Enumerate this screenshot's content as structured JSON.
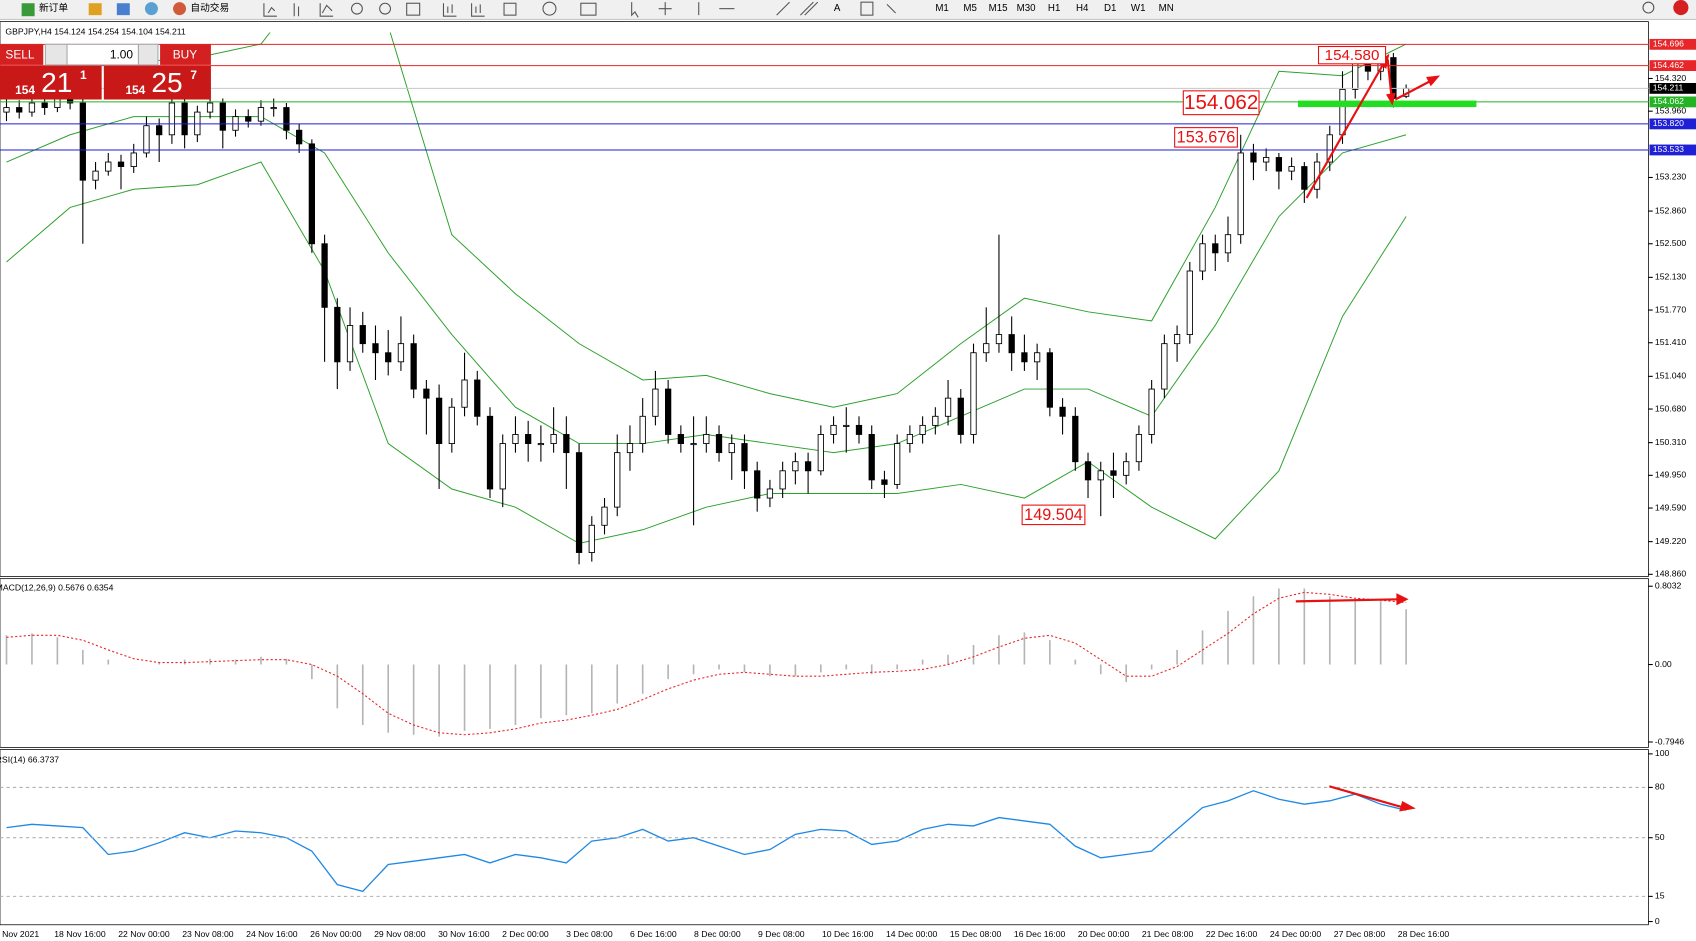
{
  "toolbar": {
    "new_order": "新订单",
    "auto_trading": "自动交易",
    "text_tool": "A",
    "timeframes": [
      "M1",
      "M5",
      "M15",
      "M30",
      "H1",
      "H4",
      "D1",
      "W1",
      "MN"
    ]
  },
  "trade_panel": {
    "sell": "SELL",
    "lots": "1.00",
    "buy": "BUY",
    "bid": {
      "big": "154",
      "main": "21",
      "sup": "1"
    },
    "ask": {
      "big": "154",
      "main": "25",
      "sup": "7"
    }
  },
  "chart_data": [
    {
      "type": "candlestick",
      "title": "GBPJPY,H4  154.124 154.254 154.104 154.211",
      "ylim": [
        148.836,
        154.827
      ],
      "yticks": [
        {
          "value": 154.32,
          "label": "154.320"
        },
        {
          "value": 153.96,
          "label": "153.960"
        },
        {
          "value": 153.23,
          "label": "153.230"
        },
        {
          "value": 152.86,
          "label": "152.860"
        },
        {
          "value": 152.5,
          "label": "152.500"
        },
        {
          "value": 152.13,
          "label": "152.130"
        },
        {
          "value": 151.77,
          "label": "151.770"
        },
        {
          "value": 151.41,
          "label": "151.410"
        },
        {
          "value": 151.04,
          "label": "151.040"
        },
        {
          "value": 150.68,
          "label": "150.680"
        },
        {
          "value": 150.31,
          "label": "150.310"
        },
        {
          "value": 149.95,
          "label": "149.950"
        },
        {
          "value": 149.59,
          "label": "149.590"
        },
        {
          "value": 149.22,
          "label": "149.220"
        },
        {
          "value": 148.86,
          "label": "148.860"
        }
      ],
      "levels": [
        {
          "value": 154.696,
          "color": "#e8262a"
        },
        {
          "value": 154.462,
          "color": "#e8262a"
        },
        {
          "value": 154.211,
          "color": "#c8c8c8",
          "label_color": "#000000"
        },
        {
          "value": 154.062,
          "color": "#22b422"
        },
        {
          "value": 153.82,
          "label": "153.820",
          "color": "#1f1fd6"
        },
        {
          "value": 153.533,
          "color": "#1f1fd6"
        }
      ],
      "annotations": [
        "154.580",
        "154.062",
        "153.676",
        "149.504"
      ],
      "bull_color": "#ffffff",
      "bear_color": "#000000",
      "ohlc": [
        [
          153.95,
          154.1,
          153.85,
          154.0
        ],
        [
          154.0,
          154.08,
          153.88,
          153.95
        ],
        [
          153.95,
          154.12,
          153.9,
          154.05
        ],
        [
          154.05,
          154.1,
          153.92,
          154.0
        ],
        [
          154.0,
          154.18,
          153.95,
          154.1
        ],
        [
          154.1,
          154.15,
          153.98,
          154.05
        ],
        [
          154.05,
          154.1,
          152.5,
          153.2
        ],
        [
          153.2,
          153.4,
          153.1,
          153.3
        ],
        [
          153.3,
          153.5,
          153.25,
          153.4
        ],
        [
          153.4,
          153.48,
          153.1,
          153.35
        ],
        [
          153.35,
          153.6,
          153.28,
          153.5
        ],
        [
          153.5,
          153.9,
          153.45,
          153.8
        ],
        [
          153.8,
          153.88,
          153.4,
          153.7
        ],
        [
          153.7,
          154.15,
          153.6,
          154.05
        ],
        [
          154.05,
          154.1,
          153.55,
          153.7
        ],
        [
          153.7,
          154.02,
          153.62,
          153.95
        ],
        [
          153.95,
          154.2,
          153.88,
          154.05
        ],
        [
          154.05,
          154.1,
          153.55,
          153.75
        ],
        [
          153.75,
          153.98,
          153.68,
          153.9
        ],
        [
          153.9,
          153.98,
          153.78,
          153.85
        ],
        [
          153.85,
          154.08,
          153.8,
          154.0
        ],
        [
          154.0,
          154.1,
          153.9,
          154.0
        ],
        [
          154.0,
          154.05,
          153.65,
          153.75
        ],
        [
          153.75,
          153.82,
          153.5,
          153.6
        ],
        [
          153.6,
          153.65,
          152.4,
          152.5
        ],
        [
          152.5,
          152.6,
          151.2,
          151.8
        ],
        [
          151.8,
          151.9,
          150.9,
          151.2
        ],
        [
          151.2,
          151.8,
          151.1,
          151.6
        ],
        [
          151.6,
          151.75,
          151.3,
          151.4
        ],
        [
          151.4,
          151.6,
          151.0,
          151.3
        ],
        [
          151.3,
          151.55,
          151.05,
          151.2
        ],
        [
          151.2,
          151.7,
          151.1,
          151.4
        ],
        [
          151.4,
          151.5,
          150.8,
          150.9
        ],
        [
          150.9,
          151.0,
          150.4,
          150.8
        ],
        [
          150.8,
          150.95,
          149.8,
          150.3
        ],
        [
          150.3,
          150.8,
          150.2,
          150.7
        ],
        [
          150.7,
          151.3,
          150.6,
          151.0
        ],
        [
          151.0,
          151.1,
          150.5,
          150.6
        ],
        [
          150.6,
          150.7,
          149.7,
          149.8
        ],
        [
          149.8,
          150.4,
          149.6,
          150.3
        ],
        [
          150.3,
          150.6,
          150.2,
          150.4
        ],
        [
          150.4,
          150.55,
          150.1,
          150.3
        ],
        [
          150.3,
          150.5,
          150.1,
          150.3
        ],
        [
          150.3,
          150.7,
          150.2,
          150.4
        ],
        [
          150.4,
          150.6,
          149.8,
          150.2
        ],
        [
          150.2,
          150.3,
          148.97,
          149.1
        ],
        [
          149.1,
          149.5,
          149.0,
          149.4
        ],
        [
          149.4,
          149.7,
          149.3,
          149.6
        ],
        [
          149.6,
          150.4,
          149.5,
          150.2
        ],
        [
          150.2,
          150.5,
          150.0,
          150.3
        ],
        [
          150.3,
          150.8,
          150.2,
          150.6
        ],
        [
          150.6,
          151.1,
          150.5,
          150.9
        ],
        [
          150.9,
          151.0,
          150.3,
          150.4
        ],
        [
          150.4,
          150.5,
          150.2,
          150.3
        ],
        [
          150.3,
          150.6,
          149.4,
          150.3
        ],
        [
          150.3,
          150.6,
          150.2,
          150.4
        ],
        [
          150.4,
          150.5,
          150.1,
          150.2
        ],
        [
          150.2,
          150.4,
          149.9,
          150.3
        ],
        [
          150.3,
          150.4,
          149.8,
          150.0
        ],
        [
          150.0,
          150.1,
          149.55,
          149.7
        ],
        [
          149.7,
          149.9,
          149.6,
          149.8
        ],
        [
          149.8,
          150.1,
          149.7,
          150.0
        ],
        [
          150.0,
          150.2,
          149.85,
          150.1
        ],
        [
          150.1,
          150.2,
          149.75,
          150.0
        ],
        [
          150.0,
          150.5,
          149.95,
          150.4
        ],
        [
          150.4,
          150.6,
          150.3,
          150.5
        ],
        [
          150.5,
          150.7,
          150.2,
          150.5
        ],
        [
          150.5,
          150.6,
          150.3,
          150.4
        ],
        [
          150.4,
          150.5,
          149.8,
          149.9
        ],
        [
          149.9,
          150.0,
          149.7,
          149.85
        ],
        [
          149.85,
          150.4,
          149.8,
          150.3
        ],
        [
          150.3,
          150.5,
          150.2,
          150.4
        ],
        [
          150.4,
          150.6,
          150.3,
          150.5
        ],
        [
          150.5,
          150.7,
          150.4,
          150.6
        ],
        [
          150.6,
          151.0,
          150.5,
          150.8
        ],
        [
          150.8,
          150.9,
          150.3,
          150.4
        ],
        [
          150.4,
          151.4,
          150.3,
          151.3
        ],
        [
          151.3,
          151.8,
          151.2,
          151.4
        ],
        [
          151.4,
          152.6,
          151.3,
          151.5
        ],
        [
          151.5,
          151.7,
          151.1,
          151.3
        ],
        [
          151.3,
          151.5,
          151.1,
          151.2
        ],
        [
          151.2,
          151.4,
          151.0,
          151.3
        ],
        [
          151.3,
          151.35,
          150.6,
          150.7
        ],
        [
          150.7,
          150.8,
          150.4,
          150.6
        ],
        [
          150.6,
          150.7,
          150.0,
          150.1
        ],
        [
          150.1,
          150.2,
          149.7,
          149.9
        ],
        [
          149.9,
          150.1,
          149.5,
          150.0
        ],
        [
          150.0,
          150.2,
          149.7,
          149.95
        ],
        [
          149.95,
          150.2,
          149.85,
          150.1
        ],
        [
          150.1,
          150.5,
          150.0,
          150.4
        ],
        [
          150.4,
          151.0,
          150.3,
          150.9
        ],
        [
          150.9,
          151.5,
          150.8,
          151.4
        ],
        [
          151.4,
          151.6,
          151.2,
          151.5
        ],
        [
          151.5,
          152.3,
          151.4,
          152.2
        ],
        [
          152.2,
          152.6,
          152.1,
          152.5
        ],
        [
          152.5,
          152.6,
          152.2,
          152.4
        ],
        [
          152.4,
          152.8,
          152.3,
          152.6
        ],
        [
          152.6,
          153.7,
          152.5,
          153.5
        ],
        [
          153.5,
          153.6,
          153.2,
          153.4
        ],
        [
          153.4,
          153.55,
          153.3,
          153.45
        ],
        [
          153.45,
          153.5,
          153.1,
          153.3
        ],
        [
          153.3,
          153.45,
          153.2,
          153.35
        ],
        [
          153.35,
          153.4,
          152.95,
          153.1
        ],
        [
          153.1,
          153.5,
          153.0,
          153.4
        ],
        [
          153.4,
          153.8,
          153.3,
          153.7
        ],
        [
          153.7,
          154.4,
          153.6,
          154.2
        ],
        [
          154.2,
          154.58,
          154.1,
          154.5
        ],
        [
          154.5,
          154.55,
          154.3,
          154.4
        ],
        [
          154.4,
          154.62,
          154.3,
          154.55
        ],
        [
          154.55,
          154.6,
          154.0,
          154.1
        ],
        [
          154.124,
          154.254,
          154.104,
          154.211
        ]
      ],
      "bands": [
        {
          "color": "#2ca02c",
          "values": [
            154.4,
            154.45,
            154.5,
            154.55,
            154.7,
            155.6,
            154.9,
            152.6,
            151.95,
            151.4,
            151.0,
            151.05,
            150.85,
            150.7,
            150.85,
            151.4,
            151.9,
            151.75,
            151.65,
            152.9,
            154.4,
            154.35,
            154.7
          ]
        },
        {
          "color": "#2ca02c",
          "values": [
            153.4,
            153.7,
            153.9,
            153.9,
            153.9,
            153.5,
            152.4,
            151.5,
            150.7,
            150.3,
            150.3,
            150.4,
            150.3,
            150.2,
            150.3,
            150.6,
            150.9,
            150.9,
            150.6,
            151.6,
            152.8,
            153.5,
            153.7
          ]
        },
        {
          "color": "#2ca02c",
          "values": [
            152.3,
            152.9,
            153.1,
            153.15,
            153.4,
            152.2,
            150.3,
            149.8,
            149.6,
            149.2,
            149.35,
            149.6,
            149.75,
            149.75,
            149.75,
            149.85,
            149.7,
            150.1,
            149.6,
            149.25,
            150.0,
            151.7,
            152.8
          ]
        }
      ]
    },
    {
      "type": "macd",
      "title": "MACD(12,26,9) 0.5676 0.6354",
      "ylim": [
        -0.85,
        0.881
      ],
      "yticks": [
        0.8032,
        {
          "value": 0,
          "label": "0.00"
        },
        -0.7946
      ],
      "histogram": {
        "color": "#b4b4b4",
        "values": [
          0.3,
          0.32,
          0.28,
          0.15,
          0.05,
          0.0,
          0.02,
          0.05,
          0.06,
          0.05,
          0.08,
          0.06,
          -0.15,
          -0.45,
          -0.62,
          -0.7,
          -0.72,
          -0.74,
          -0.68,
          -0.66,
          -0.62,
          -0.55,
          -0.52,
          -0.5,
          -0.4,
          -0.3,
          -0.15,
          -0.1,
          -0.05,
          -0.08,
          -0.12,
          -0.12,
          -0.08,
          -0.05,
          -0.1,
          -0.05,
          0.05,
          0.1,
          0.2,
          0.3,
          0.33,
          0.25,
          0.05,
          -0.1,
          -0.18,
          -0.05,
          0.15,
          0.35,
          0.55,
          0.7,
          0.78,
          0.78,
          0.7,
          0.65,
          0.65,
          0.5676
        ]
      },
      "signal": {
        "color": "#e8262a",
        "dashed": true,
        "values": [
          0.28,
          0.3,
          0.3,
          0.25,
          0.15,
          0.06,
          0.02,
          0.02,
          0.03,
          0.04,
          0.05,
          0.05,
          0.0,
          -0.12,
          -0.3,
          -0.5,
          -0.62,
          -0.7,
          -0.72,
          -0.7,
          -0.66,
          -0.6,
          -0.57,
          -0.52,
          -0.46,
          -0.36,
          -0.25,
          -0.16,
          -0.1,
          -0.08,
          -0.1,
          -0.12,
          -0.12,
          -0.1,
          -0.08,
          -0.07,
          -0.05,
          0.0,
          0.08,
          0.18,
          0.27,
          0.3,
          0.22,
          0.05,
          -0.12,
          -0.12,
          -0.02,
          0.15,
          0.32,
          0.52,
          0.68,
          0.74,
          0.72,
          0.68,
          0.66,
          0.6354
        ]
      }
    },
    {
      "type": "line",
      "title": "RSI(14) 66.3737",
      "ylim": [
        0,
        100
      ],
      "yticks": [
        100,
        80,
        50,
        15,
        0
      ],
      "color": "#1e88e5",
      "values": [
        56,
        58,
        57,
        56,
        40,
        42,
        47,
        53,
        50,
        54,
        53,
        50,
        42,
        22,
        18,
        34,
        36,
        38,
        40,
        35,
        40,
        38,
        35,
        48,
        50,
        55,
        48,
        50,
        45,
        40,
        43,
        52,
        55,
        54,
        46,
        48,
        55,
        58,
        57,
        62,
        60,
        58,
        45,
        38,
        40,
        42,
        55,
        68,
        72,
        78,
        73,
        70,
        72,
        76,
        70,
        66.3737
      ],
      "x_labels": [
        "Nov 2021",
        "18 Nov 16:00",
        "22 Nov 00:00",
        "23 Nov 08:00",
        "24 Nov 16:00",
        "26 Nov 00:00",
        "29 Nov 08:00",
        "30 Nov 16:00",
        "2 Dec 00:00",
        "3 Dec 08:00",
        "6 Dec 16:00",
        "8 Dec 00:00",
        "9 Dec 08:00",
        "10 Dec 16:00",
        "14 Dec 00:00",
        "15 Dec 08:00",
        "16 Dec 16:00",
        "20 Dec 00:00",
        "21 Dec 08:00",
        "22 Dec 16:00",
        "24 Dec 00:00",
        "27 Dec 08:00",
        "28 Dec 16:00"
      ]
    }
  ]
}
